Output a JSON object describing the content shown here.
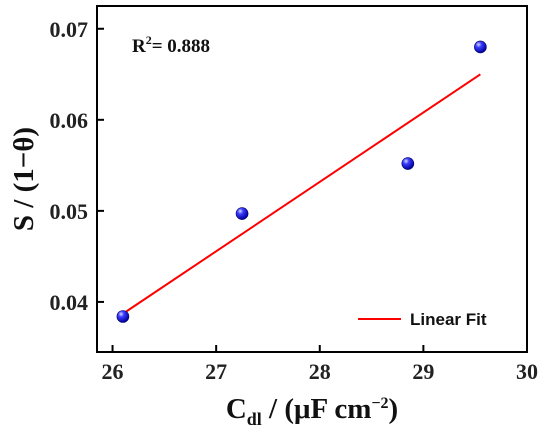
{
  "chart_data": {
    "type": "scatter",
    "title": "",
    "xlabel_main": "C",
    "xlabel_sub": "dl",
    "xlabel_unit": " / (μF cm",
    "xlabel_exp": "−2",
    "xlabel_close": ")",
    "ylabel": "S / (1−θ)",
    "xlim": [
      25.85,
      30
    ],
    "ylim": [
      0.0345,
      0.0725
    ],
    "xticks": [
      26,
      27,
      28,
      29,
      30
    ],
    "xtick_labels": [
      "26",
      "27",
      "28",
      "29",
      "30"
    ],
    "yticks": [
      0.04,
      0.05,
      0.06,
      0.07
    ],
    "ytick_labels": [
      "0.04",
      "0.05",
      "0.06",
      "0.07"
    ],
    "series": [
      {
        "kind": "points",
        "x": [
          26.1,
          27.25,
          28.85,
          29.55
        ],
        "y": [
          0.0384,
          0.0497,
          0.0552,
          0.068
        ],
        "color": "#1a1aff"
      },
      {
        "name": "Linear Fit",
        "kind": "line",
        "x": [
          26.1,
          29.55
        ],
        "y": [
          0.0387,
          0.065
        ],
        "color": "#ff0000"
      }
    ],
    "annotation": {
      "base": "R",
      "sup": "2",
      "rest": "= 0.888"
    },
    "legend_position": "bottom-right",
    "grid": false
  }
}
